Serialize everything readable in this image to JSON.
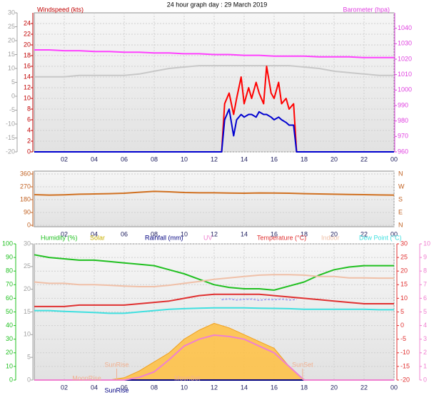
{
  "chart_data": [
    {
      "type": "line",
      "title": "24 hour graph day : 29 March 2019",
      "ylabel": "Windspeed (kts)",
      "y2label": "Barometer (hpa)",
      "grid": true,
      "xlim": [
        0,
        24
      ],
      "xticks": [
        {
          "value": 2,
          "label": "02"
        },
        {
          "value": 4,
          "label": "04"
        },
        {
          "value": 6,
          "label": "06"
        },
        {
          "value": 8,
          "label": "08"
        },
        10,
        12,
        14,
        16,
        18,
        20,
        22,
        {
          "value": 24,
          "label": "00"
        }
      ],
      "ylim": [
        0,
        26
      ],
      "yticks": [
        0,
        2,
        4,
        6,
        8,
        10,
        12,
        14,
        16,
        18,
        20,
        22,
        24
      ],
      "y2lim": [
        960,
        1050
      ],
      "y2ticks": [
        960,
        970,
        980,
        990,
        1000,
        1010,
        1020,
        1030,
        1040
      ],
      "y3lim": [
        -20,
        30
      ],
      "y3ticks": [
        -20,
        -15,
        -10,
        -5,
        0,
        5,
        10,
        15,
        20,
        25,
        30
      ],
      "x": [
        0,
        1,
        2,
        3,
        4,
        5,
        6,
        7,
        8,
        9,
        10,
        11,
        12,
        13,
        14,
        15,
        16,
        17,
        18,
        19,
        20,
        21,
        22,
        23,
        24
      ],
      "series": [
        {
          "color": "#c8c8c8",
          "axis": "y3",
          "values": [
            7,
            7,
            7,
            7.5,
            7.5,
            7.5,
            7.5,
            8,
            9,
            10,
            10.5,
            11,
            11,
            11,
            11,
            11,
            11,
            11,
            10.5,
            10,
            9,
            8.5,
            8,
            7.5,
            7.5
          ]
        },
        {
          "color": "#ff40ff",
          "axis": "y2",
          "values": [
            1026,
            1026,
            1025.5,
            1025.5,
            1025,
            1025,
            1024.5,
            1024.5,
            1024,
            1024,
            1023.5,
            1023.5,
            1023,
            1023,
            1022.5,
            1022.5,
            1022,
            1022,
            1022,
            1021.5,
            1021.5,
            1021.5,
            1021,
            1021,
            1021
          ]
        },
        {
          "color": "#ff0000",
          "x": [
            0,
            12,
            12.5,
            12.7,
            13,
            13.3,
            13.5,
            13.8,
            14,
            14.3,
            14.5,
            14.8,
            15,
            15.3,
            15.5,
            15.8,
            16,
            16.3,
            16.5,
            16.8,
            17,
            17.3,
            17.5,
            18,
            24
          ],
          "values": [
            0,
            0,
            0,
            9,
            11,
            7,
            10,
            14,
            9,
            12,
            10,
            13,
            11,
            9,
            16,
            11,
            10,
            13,
            9,
            10,
            8,
            9,
            0,
            0,
            0
          ]
        },
        {
          "color": "#0000d0",
          "x": [
            0,
            12,
            12.5,
            12.7,
            13,
            13.3,
            13.5,
            13.8,
            14,
            14.3,
            14.5,
            14.8,
            15,
            15.3,
            15.5,
            15.8,
            16,
            16.3,
            16.5,
            16.8,
            17,
            17.3,
            17.5,
            18,
            24
          ],
          "values": [
            0,
            0,
            0,
            6,
            8,
            3,
            6,
            7,
            6.5,
            7,
            7,
            6.5,
            7.5,
            7,
            7,
            6.5,
            6,
            6.5,
            6,
            5.5,
            5,
            5,
            0,
            0,
            0
          ]
        }
      ]
    },
    {
      "type": "line",
      "grid": true,
      "xlim": [
        0,
        24
      ],
      "xticks": [
        {
          "value": 2,
          "label": "02"
        },
        {
          "value": 4,
          "label": "04"
        },
        {
          "value": 6,
          "label": "06"
        },
        {
          "value": 8,
          "label": "08"
        },
        10,
        12,
        14,
        16,
        18,
        20,
        22,
        {
          "value": 24,
          "label": "00"
        }
      ],
      "ylim": [
        0,
        360
      ],
      "yticks": [
        0,
        90,
        180,
        270,
        360
      ],
      "y2lim": [
        0,
        360
      ],
      "y2ticks": [
        {
          "value": 0,
          "label": "N"
        },
        {
          "value": 90,
          "label": "E"
        },
        {
          "value": 180,
          "label": "S"
        },
        {
          "value": 270,
          "label": "W"
        },
        {
          "value": 360,
          "label": "N"
        }
      ],
      "x": [
        0,
        1,
        2,
        3,
        4,
        5,
        6,
        7,
        8,
        9,
        10,
        11,
        12,
        13,
        14,
        15,
        16,
        17,
        18,
        19,
        20,
        21,
        22,
        23,
        24
      ],
      "series": [
        {
          "color": "#d07020",
          "values": [
            215,
            212,
            214,
            218,
            220,
            222,
            225,
            232,
            238,
            235,
            230,
            228,
            228,
            226,
            225,
            227,
            226,
            225,
            222,
            220,
            218,
            216,
            215,
            213,
            212
          ]
        }
      ]
    },
    {
      "type": "line",
      "grid": true,
      "xlim": [
        0,
        24
      ],
      "xticks": [
        {
          "value": 2,
          "label": "02"
        },
        {
          "value": 4,
          "label": "04"
        },
        {
          "value": 6,
          "label": "06"
        },
        {
          "value": 8,
          "label": "08"
        },
        10,
        12,
        14,
        16,
        18,
        20,
        22,
        {
          "value": 24,
          "label": "00"
        }
      ],
      "ylim": [
        0,
        100
      ],
      "yticks": [
        0,
        10,
        20,
        30,
        40,
        50,
        60,
        70,
        80,
        90,
        100
      ],
      "y2lim": [
        -20,
        30
      ],
      "y2ticks": [
        -20,
        -15,
        -10,
        -5,
        0,
        5,
        10,
        15,
        20,
        25,
        30
      ],
      "y3lim": [
        0,
        30
      ],
      "y3ticks": [
        0,
        5,
        10,
        15,
        20,
        25,
        30
      ],
      "y4lim": [
        0,
        10
      ],
      "y4ticks": [
        0,
        1,
        2,
        3,
        4,
        5,
        6,
        7,
        8,
        9,
        10
      ],
      "x": [
        0,
        1,
        2,
        3,
        4,
        5,
        6,
        7,
        8,
        9,
        10,
        11,
        12,
        13,
        14,
        15,
        16,
        17,
        18,
        19,
        20,
        21,
        22,
        23,
        24
      ],
      "series": [
        {
          "name": "Humidity (%)",
          "color": "#20c020",
          "values": [
            92,
            90,
            89,
            88,
            88,
            87,
            86,
            85,
            84,
            81,
            78,
            74,
            70,
            68,
            67,
            67,
            66,
            69,
            72,
            77,
            81,
            83,
            84,
            84,
            84
          ]
        },
        {
          "name": "Solar",
          "type": "area",
          "color": "#ffc040",
          "axis": "y3",
          "values": [
            0,
            0,
            0,
            0,
            0,
            0,
            0.5,
            2,
            4,
            6,
            9,
            11,
            12.5,
            11.5,
            10,
            8.5,
            7,
            3,
            0,
            0,
            0,
            0,
            0,
            0,
            0
          ]
        },
        {
          "name": "Rainfall (mm)",
          "color": "#000080",
          "axis": "y3",
          "values": [
            0,
            0,
            0,
            0,
            0,
            0,
            0,
            0,
            0,
            0,
            0,
            0,
            0,
            0,
            0,
            0,
            0,
            0,
            0,
            0,
            0,
            0,
            0,
            0,
            0
          ]
        },
        {
          "name": "UV",
          "color": "#f080d0",
          "axis": "y4",
          "values": [
            0,
            0,
            0,
            0,
            0,
            0,
            0,
            0.2,
            0.6,
            1.5,
            2.5,
            3,
            3.3,
            3.2,
            3,
            2.5,
            2,
            1,
            0,
            0,
            0,
            0,
            0,
            0,
            0
          ]
        },
        {
          "name": "Temperature (°C)",
          "color": "#e03030",
          "axis": "y2",
          "values": [
            7,
            7,
            7,
            7.5,
            7.5,
            7.5,
            7.5,
            8,
            8.5,
            9,
            10,
            11,
            11.5,
            11.5,
            11.5,
            11.5,
            11,
            10.5,
            10,
            9.5,
            9,
            8.5,
            8,
            8,
            8
          ]
        },
        {
          "name": "Indoor",
          "color": "#f0c0a8",
          "axis": "y2",
          "values": [
            16,
            15.5,
            15.5,
            15,
            15,
            14.8,
            14.5,
            14.3,
            14.3,
            14.8,
            15.5,
            16.2,
            17,
            17.5,
            18,
            18.5,
            18.7,
            18.7,
            18.5,
            18,
            18,
            17.5,
            17.5,
            17.4,
            17.4
          ]
        },
        {
          "name": "Dew Point (°C)",
          "color": "#40e0e0",
          "axis": "y2",
          "values": [
            5.5,
            5.5,
            5.2,
            5,
            4.8,
            4.5,
            4.5,
            5,
            5.5,
            6,
            6.2,
            6.4,
            6.5,
            6.5,
            6.5,
            6.4,
            6.3,
            6.2,
            6,
            6,
            6,
            6,
            6,
            5.8,
            5.8
          ]
        },
        {
          "color": "#a8a8f0",
          "axis": "y2",
          "x": [
            12.5,
            13,
            13.5,
            14,
            14.5,
            15,
            15.5,
            16,
            16.5,
            17,
            17.5
          ],
          "values": [
            9.5,
            9.8,
            9.4,
            9.6,
            9.7,
            9.3,
            9.6,
            9.5,
            9.7,
            9.4,
            9.6
          ]
        }
      ],
      "annotations": [
        {
          "text": "SunRise",
          "x": 5.5,
          "color": "#f0b090"
        },
        {
          "text": "SunSet",
          "x": 17.9,
          "color": "#f0b090"
        },
        {
          "text": "MoonRise",
          "x": 3.5,
          "color": "#f0b090"
        },
        {
          "text": "MoonSet",
          "x": 10.2,
          "color": "#f0b090"
        },
        {
          "text": "SunRise",
          "x": 5.5,
          "color": "#000080"
        }
      ]
    }
  ]
}
